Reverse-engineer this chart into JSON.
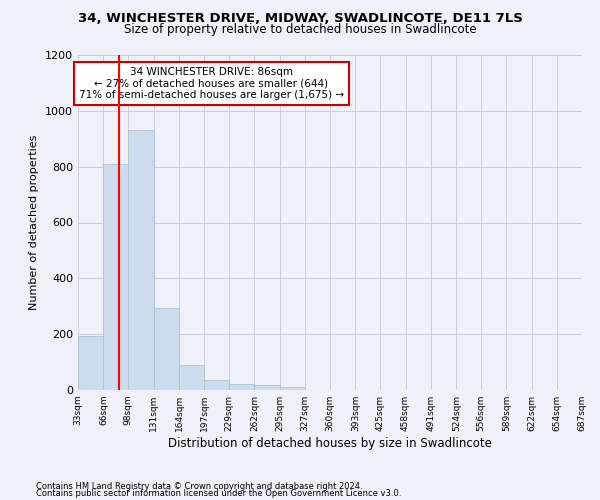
{
  "title_line1": "34, WINCHESTER DRIVE, MIDWAY, SWADLINCOTE, DE11 7LS",
  "title_line2": "Size of property relative to detached houses in Swadlincote",
  "xlabel": "Distribution of detached houses by size in Swadlincote",
  "ylabel": "Number of detached properties",
  "footnote1": "Contains HM Land Registry data © Crown copyright and database right 2024.",
  "footnote2": "Contains public sector information licensed under the Open Government Licence v3.0.",
  "bar_edges": [
    33,
    66,
    98,
    131,
    164,
    197,
    229,
    262,
    295,
    327,
    360,
    393,
    425,
    458,
    491,
    524,
    556,
    589,
    622,
    654,
    687
  ],
  "bar_heights": [
    195,
    810,
    930,
    295,
    90,
    37,
    20,
    17,
    12,
    0,
    0,
    0,
    0,
    0,
    0,
    0,
    0,
    0,
    0,
    0
  ],
  "bar_color": "#ccdcec",
  "bar_edge_color": "#aabccc",
  "red_line_x": 86,
  "ylim": [
    0,
    1200
  ],
  "yticks": [
    0,
    200,
    400,
    600,
    800,
    1000,
    1200
  ],
  "annotation_line1": "34 WINCHESTER DRIVE: 86sqm",
  "annotation_line2": "← 27% of detached houses are smaller (644)",
  "annotation_line3": "71% of semi-detached houses are larger (1,675) →",
  "annotation_box_color": "#ffffff",
  "annotation_box_edge": "#cc0000",
  "background_color": "#f0f0f8",
  "grid_color": "#ccccdd",
  "title1_fontsize": 9.5,
  "title2_fontsize": 8.5,
  "ylabel_fontsize": 8,
  "xlabel_fontsize": 8.5,
  "annot_fontsize": 7.5,
  "footnote_fontsize": 6,
  "ytick_fontsize": 8,
  "xtick_fontsize": 6.5
}
